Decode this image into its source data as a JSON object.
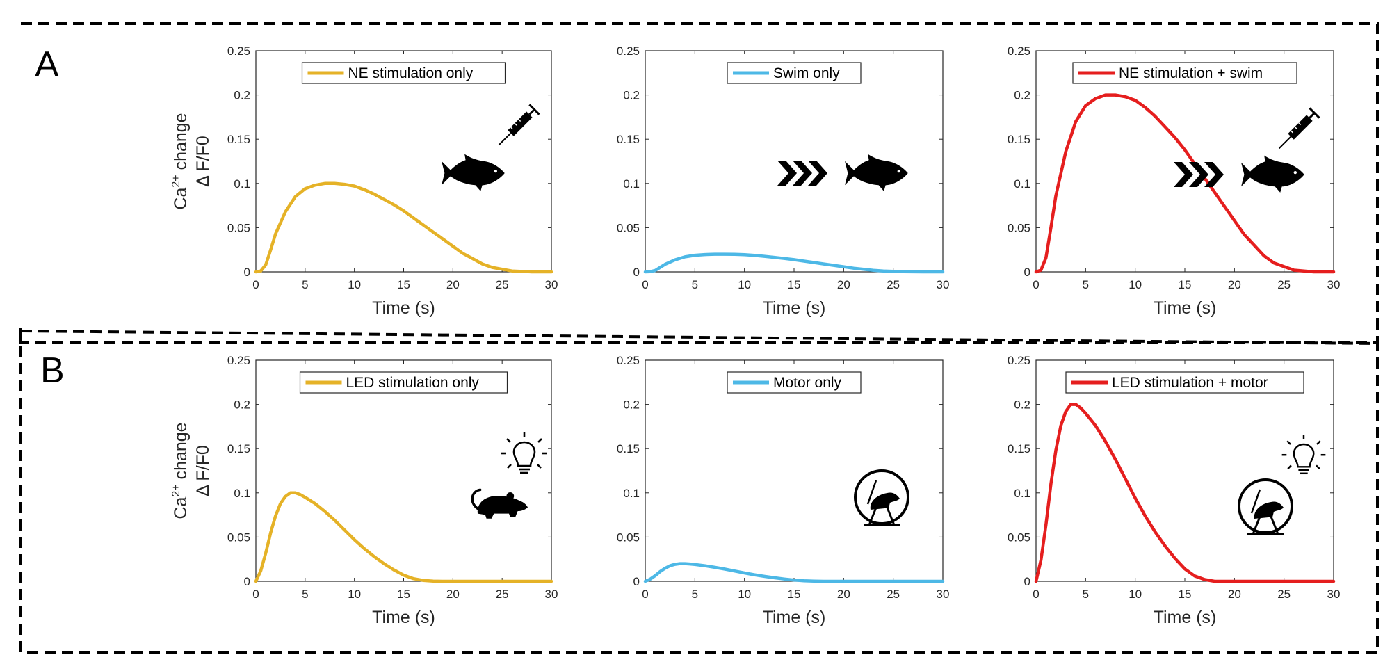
{
  "panels": [
    {
      "letter": "A",
      "ylabel": {
        "line1": "Ca",
        "sup": "2+",
        "line1b": " change",
        "line2": "Δ F/F0"
      }
    },
    {
      "letter": "B",
      "ylabel": {
        "line1": "Ca",
        "sup": "2+",
        "line1b": " change",
        "line2": "Δ F/F0"
      }
    }
  ],
  "colors": {
    "yellow": "#E5B227",
    "blue": "#4DB8E6",
    "red": "#E51E1E"
  },
  "chart_data": [
    {
      "type": "line",
      "panel": "A",
      "legend": "NE stimulation only",
      "color": "#E5B227",
      "xlabel": "Time (s)",
      "ylabel": "Ca2+ change Δ F/F0",
      "xlim": [
        0,
        30
      ],
      "ylim": [
        0,
        0.25
      ],
      "xticks": [
        0,
        5,
        10,
        15,
        20,
        25,
        30
      ],
      "yticks": [
        0,
        0.05,
        0.1,
        0.15,
        0.2,
        0.25
      ],
      "x": [
        0,
        0.5,
        1,
        1.5,
        2,
        3,
        4,
        5,
        6,
        7,
        8,
        9,
        10,
        11,
        12,
        13,
        14,
        15,
        16,
        17,
        18,
        19,
        20,
        21,
        22,
        23,
        24,
        25,
        26,
        27,
        28,
        29,
        30
      ],
      "y": [
        0,
        0.001,
        0.008,
        0.025,
        0.043,
        0.068,
        0.085,
        0.094,
        0.098,
        0.1,
        0.1,
        0.099,
        0.097,
        0.093,
        0.088,
        0.082,
        0.076,
        0.069,
        0.061,
        0.053,
        0.045,
        0.037,
        0.029,
        0.021,
        0.015,
        0.009,
        0.005,
        0.003,
        0.001,
        0.0005,
        0,
        0,
        0
      ],
      "icons": [
        "syringe-icon",
        "fish-icon"
      ]
    },
    {
      "type": "line",
      "panel": "A",
      "legend": "Swim only",
      "color": "#4DB8E6",
      "xlabel": "Time (s)",
      "ylabel": "",
      "xlim": [
        0,
        30
      ],
      "ylim": [
        0,
        0.25
      ],
      "xticks": [
        0,
        5,
        10,
        15,
        20,
        25,
        30
      ],
      "yticks": [
        0,
        0.05,
        0.1,
        0.15,
        0.2,
        0.25
      ],
      "x": [
        0,
        0.5,
        1,
        1.5,
        2,
        3,
        4,
        5,
        6,
        7,
        8,
        9,
        10,
        11,
        12,
        13,
        14,
        15,
        16,
        17,
        18,
        19,
        20,
        21,
        22,
        23,
        24,
        25,
        26,
        27,
        28,
        29,
        30
      ],
      "y": [
        0,
        0.0002,
        0.0016,
        0.005,
        0.0086,
        0.0136,
        0.017,
        0.0188,
        0.0196,
        0.02,
        0.02,
        0.0198,
        0.0194,
        0.0186,
        0.0176,
        0.0164,
        0.0152,
        0.0138,
        0.0122,
        0.0106,
        0.009,
        0.0074,
        0.0058,
        0.0042,
        0.003,
        0.0018,
        0.001,
        0.0006,
        0.0002,
        0.0001,
        0,
        0,
        0
      ],
      "icons": [
        "chevrons-icon",
        "fish-icon"
      ]
    },
    {
      "type": "line",
      "panel": "A",
      "legend": "NE stimulation + swim",
      "color": "#E51E1E",
      "xlabel": "Time (s)",
      "ylabel": "",
      "xlim": [
        0,
        30
      ],
      "ylim": [
        0,
        0.25
      ],
      "xticks": [
        0,
        5,
        10,
        15,
        20,
        25,
        30
      ],
      "yticks": [
        0,
        0.05,
        0.1,
        0.15,
        0.2,
        0.25
      ],
      "x": [
        0,
        0.5,
        1,
        1.5,
        2,
        3,
        4,
        5,
        6,
        7,
        8,
        9,
        10,
        11,
        12,
        13,
        14,
        15,
        16,
        17,
        18,
        19,
        20,
        21,
        22,
        23,
        24,
        25,
        26,
        27,
        28,
        29,
        30
      ],
      "y": [
        0,
        0.002,
        0.016,
        0.05,
        0.086,
        0.136,
        0.17,
        0.188,
        0.196,
        0.2,
        0.2,
        0.198,
        0.194,
        0.186,
        0.176,
        0.164,
        0.152,
        0.138,
        0.122,
        0.106,
        0.09,
        0.074,
        0.058,
        0.042,
        0.03,
        0.018,
        0.01,
        0.006,
        0.002,
        0.001,
        0,
        0,
        0
      ],
      "icons": [
        "syringe-icon",
        "chevrons-icon",
        "fish-icon"
      ]
    },
    {
      "type": "line",
      "panel": "B",
      "legend": "LED stimulation only",
      "color": "#E5B227",
      "xlabel": "Time (s)",
      "ylabel": "Ca2+ change Δ F/F0",
      "xlim": [
        0,
        30
      ],
      "ylim": [
        0,
        0.25
      ],
      "xticks": [
        0,
        5,
        10,
        15,
        20,
        25,
        30
      ],
      "yticks": [
        0,
        0.05,
        0.1,
        0.15,
        0.2,
        0.25
      ],
      "x": [
        0,
        0.5,
        1,
        1.5,
        2,
        2.5,
        3,
        3.5,
        4,
        4.5,
        5,
        6,
        7,
        8,
        9,
        10,
        11,
        12,
        13,
        14,
        15,
        16,
        17,
        18,
        19,
        20,
        22,
        25,
        30
      ],
      "y": [
        0,
        0.012,
        0.032,
        0.055,
        0.074,
        0.088,
        0.096,
        0.1,
        0.1,
        0.098,
        0.095,
        0.088,
        0.079,
        0.069,
        0.058,
        0.047,
        0.037,
        0.028,
        0.02,
        0.013,
        0.007,
        0.003,
        0.001,
        0.0002,
        0,
        0,
        0,
        0,
        0
      ],
      "icons": [
        "lightbulb-icon",
        "mouse-icon"
      ]
    },
    {
      "type": "line",
      "panel": "B",
      "legend": "Motor only",
      "color": "#4DB8E6",
      "xlabel": "Time (s)",
      "ylabel": "",
      "xlim": [
        0,
        30
      ],
      "ylim": [
        0,
        0.25
      ],
      "xticks": [
        0,
        5,
        10,
        15,
        20,
        25,
        30
      ],
      "yticks": [
        0,
        0.05,
        0.1,
        0.15,
        0.2,
        0.25
      ],
      "x": [
        0,
        0.5,
        1,
        1.5,
        2,
        2.5,
        3,
        3.5,
        4,
        4.5,
        5,
        6,
        7,
        8,
        9,
        10,
        11,
        12,
        13,
        14,
        15,
        16,
        17,
        18,
        19,
        20,
        22,
        25,
        30
      ],
      "y": [
        0,
        0.0024,
        0.0064,
        0.011,
        0.0148,
        0.0176,
        0.0192,
        0.02,
        0.02,
        0.0196,
        0.019,
        0.0176,
        0.0158,
        0.0138,
        0.0116,
        0.0094,
        0.0074,
        0.0056,
        0.004,
        0.0026,
        0.0014,
        0.0006,
        0.0002,
        0,
        0,
        0,
        0,
        0,
        0
      ],
      "icons": [
        "hamster-wheel-icon"
      ]
    },
    {
      "type": "line",
      "panel": "B",
      "legend": "LED stimulation + motor",
      "color": "#E51E1E",
      "xlabel": "Time (s)",
      "ylabel": "",
      "xlim": [
        0,
        30
      ],
      "ylim": [
        0,
        0.25
      ],
      "xticks": [
        0,
        5,
        10,
        15,
        20,
        25,
        30
      ],
      "yticks": [
        0,
        0.05,
        0.1,
        0.15,
        0.2,
        0.25
      ],
      "x": [
        0,
        0.5,
        1,
        1.5,
        2,
        2.5,
        3,
        3.5,
        4,
        4.5,
        5,
        6,
        7,
        8,
        9,
        10,
        11,
        12,
        13,
        14,
        15,
        16,
        17,
        18,
        19,
        20,
        22,
        25,
        30
      ],
      "y": [
        0,
        0.024,
        0.064,
        0.11,
        0.148,
        0.176,
        0.192,
        0.2,
        0.2,
        0.196,
        0.19,
        0.176,
        0.158,
        0.138,
        0.116,
        0.094,
        0.074,
        0.056,
        0.04,
        0.026,
        0.014,
        0.006,
        0.002,
        0,
        0,
        0,
        0,
        0,
        0
      ],
      "icons": [
        "lightbulb-icon",
        "hamster-wheel-icon"
      ]
    }
  ]
}
